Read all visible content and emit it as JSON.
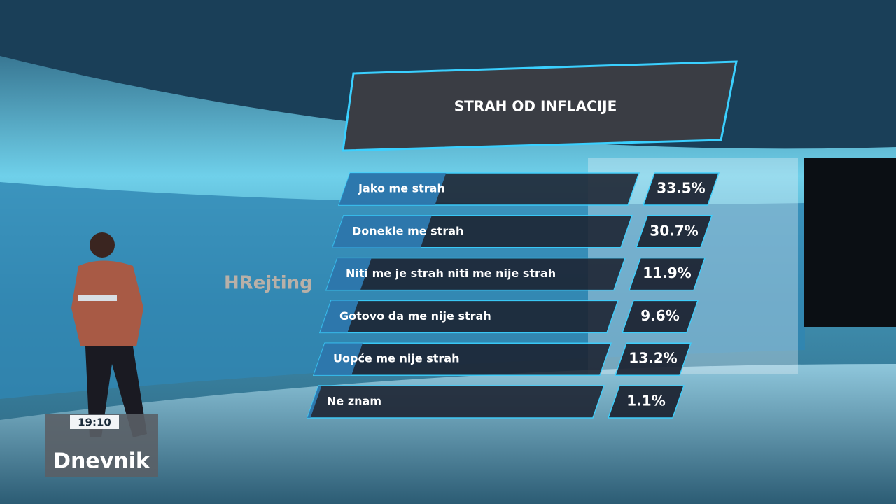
{
  "chart_data": {
    "type": "bar",
    "title": "STRAH OD INFLACIJE",
    "categories": [
      "Jako me strah",
      "Donekle me strah",
      "Niti me je strah niti me nije strah",
      "Gotovo da me nije strah",
      "Uopće me nije strah",
      "Ne znam"
    ],
    "values": [
      33.5,
      30.7,
      11.9,
      9.6,
      13.2,
      1.1
    ],
    "value_labels": [
      "33.5%",
      "30.7%",
      "11.9%",
      "9.6%",
      "13.2%",
      "1.1%"
    ],
    "color": "#2f7fb8"
  },
  "logo": "HRejting",
  "clock": "19:10",
  "show": "Dnevnik"
}
